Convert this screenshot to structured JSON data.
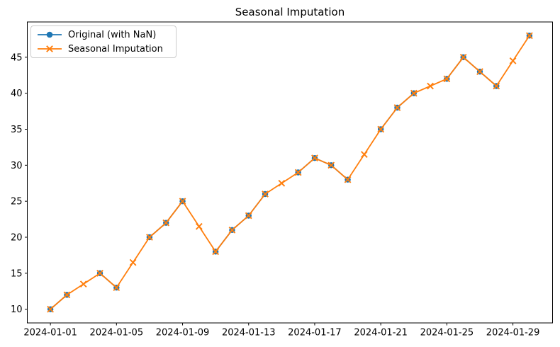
{
  "figure": {
    "background_color": "#ffffff",
    "spine_color": "#000000"
  },
  "chart_data": {
    "type": "line",
    "title": "Seasonal Imputation",
    "xlabel": "",
    "ylabel": "",
    "grid": false,
    "legend_position": "upper-left",
    "x": [
      "2024-01-01",
      "2024-01-02",
      "2024-01-03",
      "2024-01-04",
      "2024-01-05",
      "2024-01-06",
      "2024-01-07",
      "2024-01-08",
      "2024-01-09",
      "2024-01-10",
      "2024-01-11",
      "2024-01-12",
      "2024-01-13",
      "2024-01-14",
      "2024-01-15",
      "2024-01-16",
      "2024-01-17",
      "2024-01-18",
      "2024-01-19",
      "2024-01-20",
      "2024-01-21",
      "2024-01-22",
      "2024-01-23",
      "2024-01-24",
      "2024-01-25",
      "2024-01-26",
      "2024-01-27",
      "2024-01-28",
      "2024-01-29",
      "2024-01-30"
    ],
    "x_tick_labels": [
      "2024-01-01",
      "2024-01-05",
      "2024-01-09",
      "2024-01-13",
      "2024-01-17",
      "2024-01-21",
      "2024-01-25",
      "2024-01-29"
    ],
    "y_ticks": [
      10,
      15,
      20,
      25,
      30,
      35,
      40,
      45
    ],
    "ylim": [
      8.1,
      49.9
    ],
    "xlim_index": [
      -1.4,
      30.4
    ],
    "series": [
      {
        "name": "Original (with NaN)",
        "color": "#1f77b4",
        "marker": "o",
        "values": [
          10,
          12,
          null,
          15,
          13,
          null,
          20,
          22,
          25,
          null,
          18,
          21,
          23,
          26,
          null,
          29,
          31,
          30,
          28,
          null,
          35,
          38,
          40,
          null,
          42,
          45,
          43,
          41,
          null,
          48
        ]
      },
      {
        "name": "Seasonal Imputation",
        "color": "#ff7f0e",
        "marker": "x",
        "values": [
          10,
          12,
          13.5,
          15,
          13,
          16.5,
          20,
          22,
          25,
          21.5,
          18,
          21,
          23,
          26,
          27.5,
          29,
          31,
          30,
          28,
          31.5,
          35,
          38,
          40,
          41,
          42,
          45,
          43,
          41,
          44.5,
          48
        ]
      }
    ]
  }
}
